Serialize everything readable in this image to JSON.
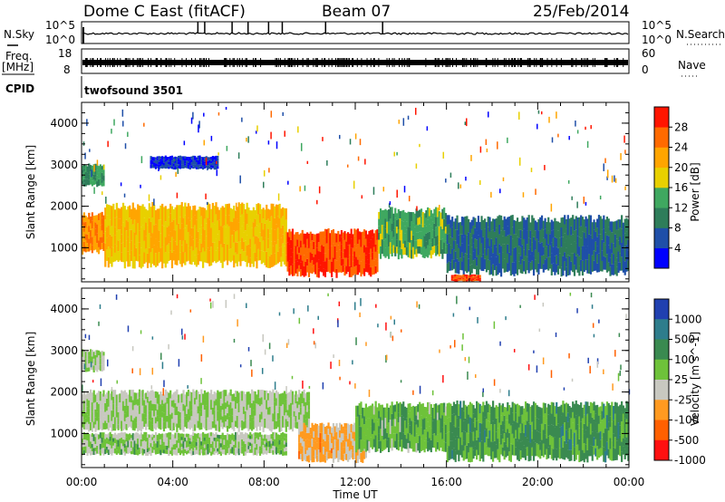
{
  "header": {
    "station": "Dome C East (fitACF)",
    "beam": "Beam 07",
    "date": "25/Feb/2014"
  },
  "left_labels": {
    "nsky": "N.Sky",
    "freq_line1": "Freq.",
    "freq_line2": "[MHz]",
    "cpid": "CPID"
  },
  "right_labels": {
    "nsearch": "N.Search",
    "nave": "Nave"
  },
  "nsky_ticks": {
    "top": "10^5",
    "bottom": "10^0"
  },
  "freq_ticks": {
    "top": "18",
    "bottom": "8"
  },
  "nave_ticks": {
    "top": "60",
    "bottom": "0"
  },
  "cpid_text": "twofsound 3501",
  "x_axis": {
    "label": "Time UT",
    "ticks": [
      "00:00",
      "04:00",
      "08:00",
      "12:00",
      "16:00",
      "20:00",
      "00:00"
    ]
  },
  "y_axis": {
    "label": "Slant Range [km]",
    "ticks": [
      "1000",
      "2000",
      "3000",
      "4000"
    ]
  },
  "power_colorbar": {
    "label": "Power [dB]",
    "ticks": [
      "4",
      "8",
      "12",
      "16",
      "20",
      "24",
      "28"
    ],
    "colors": [
      "#0000ff",
      "#1f4fa8",
      "#2e7d5a",
      "#3fa860",
      "#e8d000",
      "#ffa500",
      "#ff6a00",
      "#ff1500"
    ]
  },
  "velocity_colorbar": {
    "label": "Velocity [m s^-1]",
    "ticks": [
      "1000",
      "500",
      "100",
      "25",
      "-25",
      "-100",
      "-500",
      "-1000"
    ],
    "colors": [
      "#2040b0",
      "#2e7d8c",
      "#3a8a50",
      "#6ec23a",
      "#c8c8c0",
      "#ff9a20",
      "#ff6000",
      "#ff1010"
    ]
  },
  "chart_data": {
    "type": "heatmap",
    "title": "Dome C East (fitACF)",
    "xlabel": "Time UT",
    "ylabel": "Slant Range [km]",
    "xlim": [
      "00:00",
      "24:00"
    ],
    "ylim": [
      180,
      4500
    ],
    "panels": [
      {
        "name": "Power",
        "unit": "dB",
        "scale": [
          0,
          32
        ],
        "regions": [
          {
            "t_start": 0,
            "t_end": 1,
            "r_min": 900,
            "r_max": 1800,
            "value": 24
          },
          {
            "t_start": 1,
            "t_end": 9,
            "r_min": 600,
            "r_max": 2000,
            "value": 20
          },
          {
            "t_start": 9,
            "t_end": 13,
            "r_min": 350,
            "r_max": 1400,
            "value": 28
          },
          {
            "t_start": 13,
            "t_end": 16,
            "r_min": 800,
            "r_max": 1900,
            "value": 14
          },
          {
            "t_start": 16,
            "t_end": 24,
            "r_min": 400,
            "r_max": 1700,
            "value": 8
          },
          {
            "t_start": 16.2,
            "t_end": 17.5,
            "r_min": 200,
            "r_max": 350,
            "value": 28
          },
          {
            "t_start": 0,
            "t_end": 1,
            "r_min": 2500,
            "r_max": 3000,
            "value": 12
          },
          {
            "t_start": 3,
            "t_end": 6,
            "r_min": 2900,
            "r_max": 3200,
            "value": 4
          }
        ]
      },
      {
        "name": "Velocity",
        "unit": "m s^-1",
        "scale": [
          -1000,
          1000
        ],
        "regions": [
          {
            "t_start": 0,
            "t_end": 10,
            "r_min": 1100,
            "r_max": 2000,
            "value": 0
          },
          {
            "t_start": 0,
            "t_end": 9,
            "r_min": 500,
            "r_max": 1000,
            "value": 60
          },
          {
            "t_start": 9.5,
            "t_end": 12.5,
            "r_min": 350,
            "r_max": 1200,
            "value": -300
          },
          {
            "t_start": 12,
            "t_end": 16,
            "r_min": 600,
            "r_max": 1700,
            "value": 200
          },
          {
            "t_start": 16,
            "t_end": 24,
            "r_min": 400,
            "r_max": 1700,
            "value": 300
          },
          {
            "t_start": 0,
            "t_end": 1,
            "r_min": 2500,
            "r_max": 3000,
            "value": 0
          }
        ]
      }
    ]
  }
}
